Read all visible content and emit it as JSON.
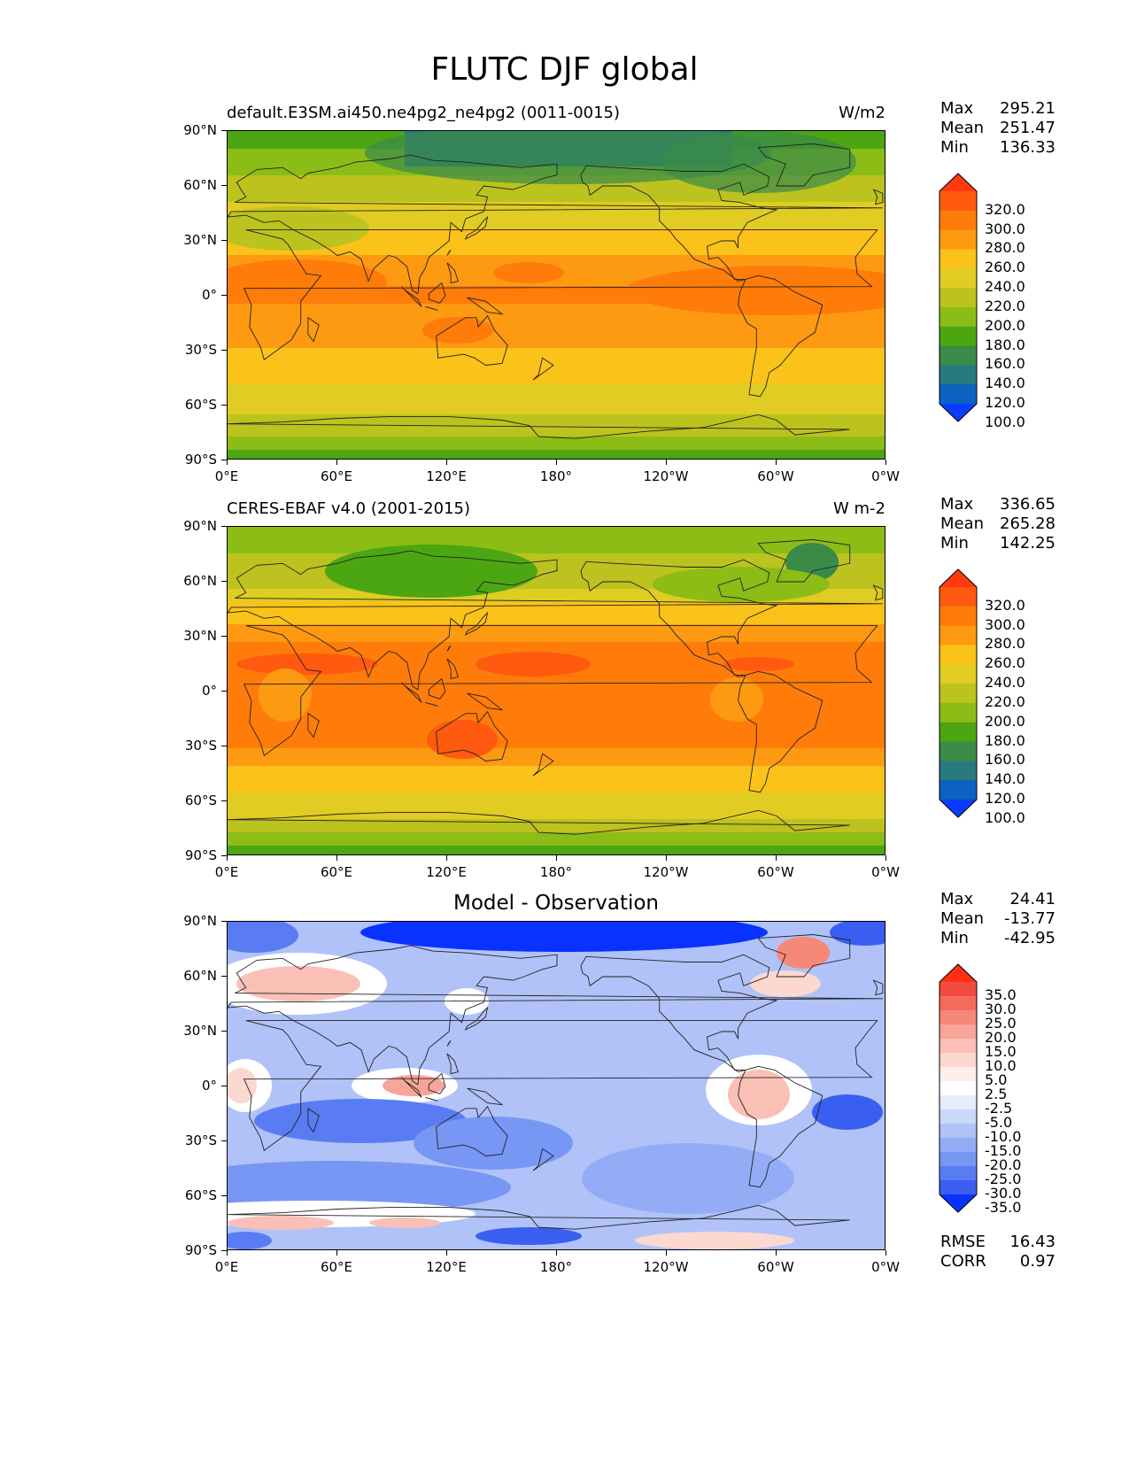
{
  "figure": {
    "title": "FLUTC DJF global"
  },
  "axes": {
    "lat_labels": [
      "90°N",
      "60°N",
      "30°N",
      "0°",
      "30°S",
      "60°S",
      "90°S"
    ],
    "lon_labels": [
      "0°E",
      "60°E",
      "120°E",
      "180°",
      "120°W",
      "60°W",
      "0°W"
    ]
  },
  "panels": [
    {
      "title_left": "default.E3SM.ai450.ne4pg2_ne4pg2 (0011-0015)",
      "title_right": "W/m2",
      "title_center": "",
      "stats": {
        "max_label": "Max",
        "max": "295.21",
        "mean_label": "Mean",
        "mean": "251.47",
        "min_label": "Min",
        "min": "136.33"
      },
      "colorbar": {
        "labels": [
          "320.0",
          "300.0",
          "280.0",
          "260.0",
          "240.0",
          "220.0",
          "200.0",
          "180.0",
          "160.0",
          "140.0",
          "120.0",
          "100.0"
        ],
        "colors": [
          "#ff3a10",
          "#ff5a10",
          "#ff7c0a",
          "#fd9a12",
          "#fbc21a",
          "#e0cc22",
          "#bcc21e",
          "#8cbc16",
          "#4ca612",
          "#3a8a48",
          "#287a7e",
          "#0c62c0",
          "#0a3cff"
        ]
      },
      "layers": [
        {
          "band": "#4ca612"
        },
        {
          "band": "#8cbc16"
        },
        {
          "band": "#bcc21e"
        },
        {
          "band": "#e0cc22"
        },
        {
          "band": "#fbc21a"
        },
        {
          "band": "#fd9a12"
        },
        {
          "band": "#ff7c0a"
        }
      ]
    },
    {
      "title_left": "CERES-EBAF v4.0 (2001-2015)",
      "title_right": "W m-2",
      "title_center": "",
      "stats": {
        "max_label": "Max",
        "max": "336.65",
        "mean_label": "Mean",
        "mean": "265.28",
        "min_label": "Min",
        "min": "142.25"
      },
      "colorbar": {
        "labels": [
          "320.0",
          "300.0",
          "280.0",
          "260.0",
          "240.0",
          "220.0",
          "200.0",
          "180.0",
          "160.0",
          "140.0",
          "120.0",
          "100.0"
        ],
        "colors": [
          "#ff3a10",
          "#ff5a10",
          "#ff7c0a",
          "#fd9a12",
          "#fbc21a",
          "#e0cc22",
          "#bcc21e",
          "#8cbc16",
          "#4ca612",
          "#3a8a48",
          "#287a7e",
          "#0c62c0",
          "#0a3cff"
        ]
      }
    },
    {
      "title_left": "",
      "title_right": "",
      "title_center": "Model - Observation",
      "stats": {
        "max_label": "Max",
        "max": "24.41",
        "mean_label": "Mean",
        "mean": "-13.77",
        "min_label": "Min",
        "min": "-42.95"
      },
      "colorbar": {
        "labels": [
          "35.0",
          "30.0",
          "25.0",
          "20.0",
          "15.0",
          "10.0",
          "5.0",
          "2.5",
          "-2.5",
          "-5.0",
          "-10.0",
          "-15.0",
          "-20.0",
          "-25.0",
          "-30.0",
          "-35.0"
        ],
        "colors": [
          "#ff3010",
          "#f24a40",
          "#f46a5c",
          "#f68878",
          "#f8a498",
          "#fac0b6",
          "#fcd8d0",
          "#fdeeea",
          "#ffffff",
          "#e6ecfc",
          "#ccd8fa",
          "#b0c2f8",
          "#94acf6",
          "#7896f4",
          "#5a7cf2",
          "#3a5ef0",
          "#0a32ff"
        ]
      },
      "metrics": {
        "rmse_label": "RMSE",
        "rmse": "16.43",
        "corr_label": "CORR",
        "corr": "0.97"
      }
    }
  ]
}
